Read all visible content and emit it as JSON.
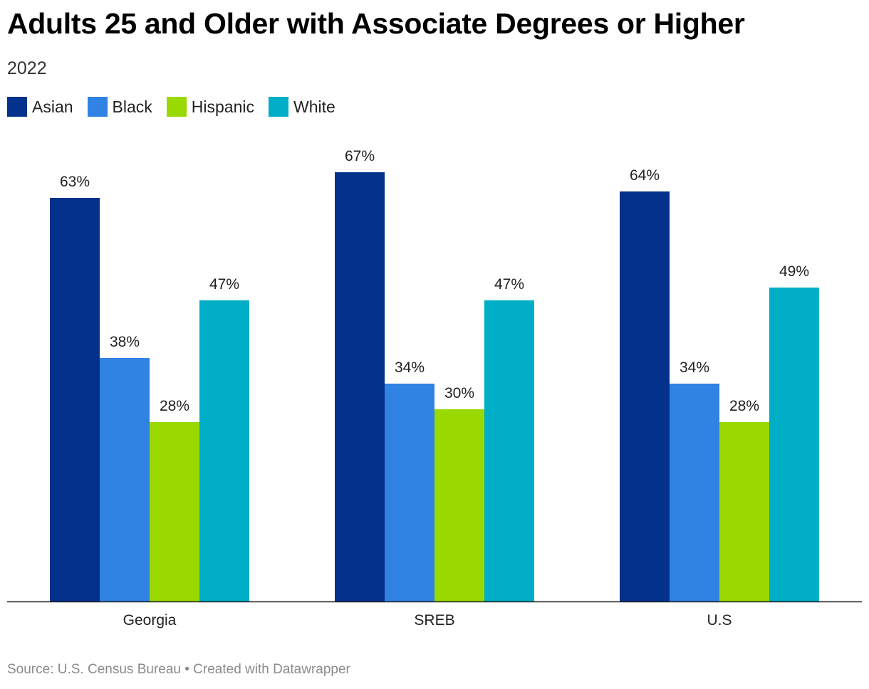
{
  "chart_data": {
    "type": "bar",
    "title": "Adults 25 and Older with Associate Degrees or Higher",
    "subtitle": "2022",
    "categories": [
      "Georgia",
      "SREB",
      "U.S"
    ],
    "series": [
      {
        "name": "Asian",
        "color": "#03318c",
        "values": [
          63,
          67,
          64
        ],
        "labels": [
          "63%",
          "67%",
          "64%"
        ]
      },
      {
        "name": "Black",
        "color": "#3082e3",
        "values": [
          38,
          34,
          34
        ],
        "labels": [
          "38%",
          "34%",
          "34%"
        ]
      },
      {
        "name": "Hispanic",
        "color": "#99d900",
        "values": [
          28,
          30,
          28
        ],
        "labels": [
          "28%",
          "30%",
          "28%"
        ]
      },
      {
        "name": "White",
        "color": "#00aec7",
        "values": [
          47,
          47,
          49
        ],
        "labels": [
          "47%",
          "47%",
          "49%"
        ]
      }
    ],
    "ylim": [
      0,
      100
    ],
    "grid": false,
    "legend_position": "top-left"
  },
  "source": "Source: U.S. Census Bureau • Created with Datawrapper"
}
